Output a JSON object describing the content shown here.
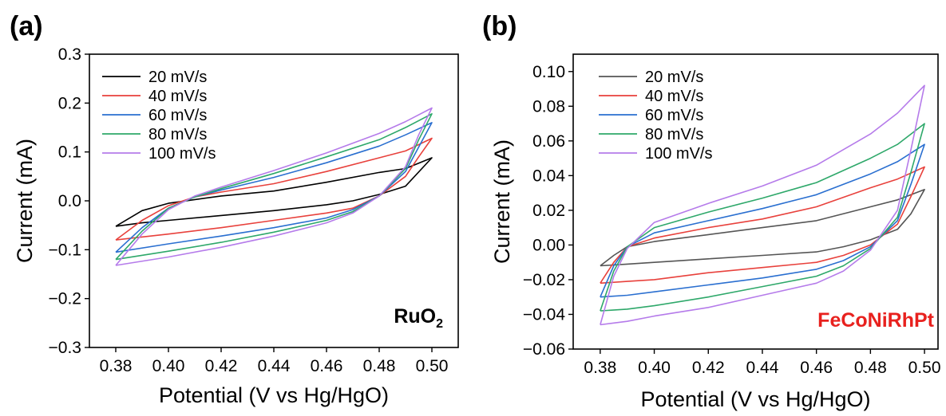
{
  "chart_data": [
    {
      "type": "line",
      "panel_label": "(a)",
      "annotation": "RuO",
      "annotation_sub": "2",
      "annotation_color": "#000000",
      "xlabel": "Potential (V vs Hg/HgO)",
      "ylabel": "Current (mA)",
      "xlim": [
        0.37,
        0.51
      ],
      "ylim": [
        -0.3,
        0.3
      ],
      "xticks": [
        0.38,
        0.4,
        0.42,
        0.44,
        0.46,
        0.48,
        0.5
      ],
      "xtick_labels": [
        "0.38",
        "0.40",
        "0.42",
        "0.44",
        "0.46",
        "0.48",
        "0.50"
      ],
      "yticks": [
        -0.3,
        -0.2,
        -0.1,
        0.0,
        0.1,
        0.2,
        0.3
      ],
      "ytick_labels": [
        "−0.3",
        "−0.2",
        "−0.1",
        "0.0",
        "0.1",
        "0.2",
        "0.3"
      ],
      "legend_position": "top-left",
      "series": [
        {
          "name": "20 mV/s",
          "color": "#000000",
          "x": [
            0.38,
            0.39,
            0.4,
            0.42,
            0.44,
            0.46,
            0.48,
            0.49,
            0.5,
            0.49,
            0.48,
            0.47,
            0.46,
            0.44,
            0.42,
            0.4,
            0.39,
            0.38
          ],
          "y": [
            -0.052,
            -0.02,
            -0.005,
            0.01,
            0.02,
            0.038,
            0.058,
            0.066,
            0.088,
            0.03,
            0.013,
            0.0,
            -0.008,
            -0.02,
            -0.03,
            -0.04,
            -0.045,
            -0.052
          ]
        },
        {
          "name": "40 mV/s",
          "color": "#e8413c",
          "x": [
            0.38,
            0.39,
            0.4,
            0.41,
            0.42,
            0.44,
            0.46,
            0.48,
            0.49,
            0.5,
            0.495,
            0.49,
            0.48,
            0.47,
            0.46,
            0.44,
            0.42,
            0.4,
            0.38
          ],
          "y": [
            -0.08,
            -0.04,
            -0.01,
            0.008,
            0.018,
            0.035,
            0.06,
            0.088,
            0.102,
            0.128,
            0.09,
            0.05,
            0.01,
            -0.015,
            -0.025,
            -0.04,
            -0.055,
            -0.068,
            -0.08
          ]
        },
        {
          "name": "60 mV/s",
          "color": "#2a6fd0",
          "x": [
            0.38,
            0.39,
            0.4,
            0.41,
            0.42,
            0.44,
            0.46,
            0.48,
            0.49,
            0.5,
            0.495,
            0.49,
            0.48,
            0.47,
            0.46,
            0.44,
            0.42,
            0.4,
            0.38
          ],
          "y": [
            -0.105,
            -0.055,
            -0.015,
            0.008,
            0.022,
            0.048,
            0.078,
            0.112,
            0.135,
            0.16,
            0.11,
            0.06,
            0.01,
            -0.018,
            -0.035,
            -0.055,
            -0.072,
            -0.088,
            -0.105
          ]
        },
        {
          "name": "80 mV/s",
          "color": "#2ea86a",
          "x": [
            0.38,
            0.39,
            0.4,
            0.41,
            0.42,
            0.44,
            0.46,
            0.48,
            0.49,
            0.5,
            0.495,
            0.49,
            0.48,
            0.47,
            0.46,
            0.44,
            0.42,
            0.4,
            0.38
          ],
          "y": [
            -0.12,
            -0.062,
            -0.015,
            0.008,
            0.025,
            0.056,
            0.09,
            0.125,
            0.15,
            0.178,
            0.125,
            0.066,
            0.01,
            -0.022,
            -0.04,
            -0.064,
            -0.085,
            -0.103,
            -0.12
          ]
        },
        {
          "name": "100 mV/s",
          "color": "#b57bea",
          "x": [
            0.38,
            0.39,
            0.4,
            0.41,
            0.42,
            0.44,
            0.46,
            0.48,
            0.49,
            0.5,
            0.495,
            0.49,
            0.48,
            0.47,
            0.46,
            0.44,
            0.42,
            0.4,
            0.38
          ],
          "y": [
            -0.132,
            -0.068,
            -0.018,
            0.01,
            0.028,
            0.062,
            0.098,
            0.138,
            0.162,
            0.19,
            0.135,
            0.07,
            0.01,
            -0.025,
            -0.045,
            -0.072,
            -0.095,
            -0.115,
            -0.132
          ]
        }
      ]
    },
    {
      "type": "line",
      "panel_label": "(b)",
      "annotation": "FeCoNiRhPt",
      "annotation_sub": "",
      "annotation_color": "#e8211e",
      "xlabel": "Potential (V vs Hg/HgO)",
      "ylabel": "Current (mA)",
      "xlim": [
        0.37,
        0.505
      ],
      "ylim": [
        -0.06,
        0.11
      ],
      "xticks": [
        0.38,
        0.4,
        0.42,
        0.44,
        0.46,
        0.48,
        0.5
      ],
      "xtick_labels": [
        "0.38",
        "0.40",
        "0.42",
        "0.44",
        "0.46",
        "0.48",
        "0.50"
      ],
      "yticks": [
        -0.06,
        -0.04,
        -0.02,
        0.0,
        0.02,
        0.04,
        0.06,
        0.08,
        0.1
      ],
      "ytick_labels": [
        "−0.06",
        "−0.04",
        "−0.02",
        "0.00",
        "0.02",
        "0.04",
        "0.06",
        "0.08",
        "0.10"
      ],
      "legend_position": "top-left",
      "series": [
        {
          "name": "20 mV/s",
          "color": "#555555",
          "x": [
            0.38,
            0.385,
            0.39,
            0.4,
            0.42,
            0.44,
            0.46,
            0.48,
            0.49,
            0.5,
            0.495,
            0.49,
            0.48,
            0.47,
            0.46,
            0.44,
            0.42,
            0.4,
            0.39,
            0.38
          ],
          "y": [
            -0.012,
            -0.006,
            -0.001,
            0.002,
            0.006,
            0.01,
            0.014,
            0.022,
            0.026,
            0.032,
            0.018,
            0.009,
            0.003,
            -0.001,
            -0.004,
            -0.006,
            -0.008,
            -0.01,
            -0.011,
            -0.012
          ]
        },
        {
          "name": "40 mV/s",
          "color": "#e8413c",
          "x": [
            0.38,
            0.385,
            0.39,
            0.4,
            0.42,
            0.44,
            0.46,
            0.48,
            0.49,
            0.5,
            0.495,
            0.49,
            0.48,
            0.47,
            0.46,
            0.44,
            0.42,
            0.4,
            0.39,
            0.38
          ],
          "y": [
            -0.022,
            -0.01,
            -0.001,
            0.004,
            0.01,
            0.015,
            0.022,
            0.033,
            0.038,
            0.045,
            0.028,
            0.012,
            0.0,
            -0.006,
            -0.01,
            -0.013,
            -0.016,
            -0.02,
            -0.021,
            -0.022
          ]
        },
        {
          "name": "60 mV/s",
          "color": "#2a6fd0",
          "x": [
            0.38,
            0.385,
            0.39,
            0.4,
            0.42,
            0.44,
            0.46,
            0.48,
            0.49,
            0.5,
            0.495,
            0.49,
            0.48,
            0.47,
            0.46,
            0.44,
            0.42,
            0.4,
            0.39,
            0.38
          ],
          "y": [
            -0.03,
            -0.012,
            -0.001,
            0.007,
            0.014,
            0.021,
            0.029,
            0.041,
            0.048,
            0.058,
            0.035,
            0.014,
            -0.001,
            -0.009,
            -0.014,
            -0.019,
            -0.023,
            -0.027,
            -0.029,
            -0.03
          ]
        },
        {
          "name": "80 mV/s",
          "color": "#2ea86a",
          "x": [
            0.38,
            0.385,
            0.39,
            0.4,
            0.42,
            0.44,
            0.46,
            0.48,
            0.49,
            0.5,
            0.495,
            0.49,
            0.48,
            0.47,
            0.46,
            0.44,
            0.42,
            0.4,
            0.39,
            0.38
          ],
          "y": [
            -0.038,
            -0.015,
            -0.001,
            0.01,
            0.019,
            0.027,
            0.036,
            0.05,
            0.058,
            0.07,
            0.042,
            0.016,
            -0.002,
            -0.012,
            -0.018,
            -0.024,
            -0.03,
            -0.035,
            -0.037,
            -0.038
          ]
        },
        {
          "name": "100 mV/s",
          "color": "#b57bea",
          "x": [
            0.38,
            0.385,
            0.39,
            0.4,
            0.42,
            0.44,
            0.46,
            0.48,
            0.49,
            0.5,
            0.495,
            0.49,
            0.48,
            0.47,
            0.46,
            0.44,
            0.42,
            0.4,
            0.39,
            0.38
          ],
          "y": [
            -0.046,
            -0.018,
            -0.002,
            0.013,
            0.024,
            0.034,
            0.046,
            0.064,
            0.076,
            0.092,
            0.055,
            0.02,
            -0.003,
            -0.015,
            -0.022,
            -0.029,
            -0.036,
            -0.041,
            -0.044,
            -0.046
          ]
        }
      ]
    }
  ]
}
